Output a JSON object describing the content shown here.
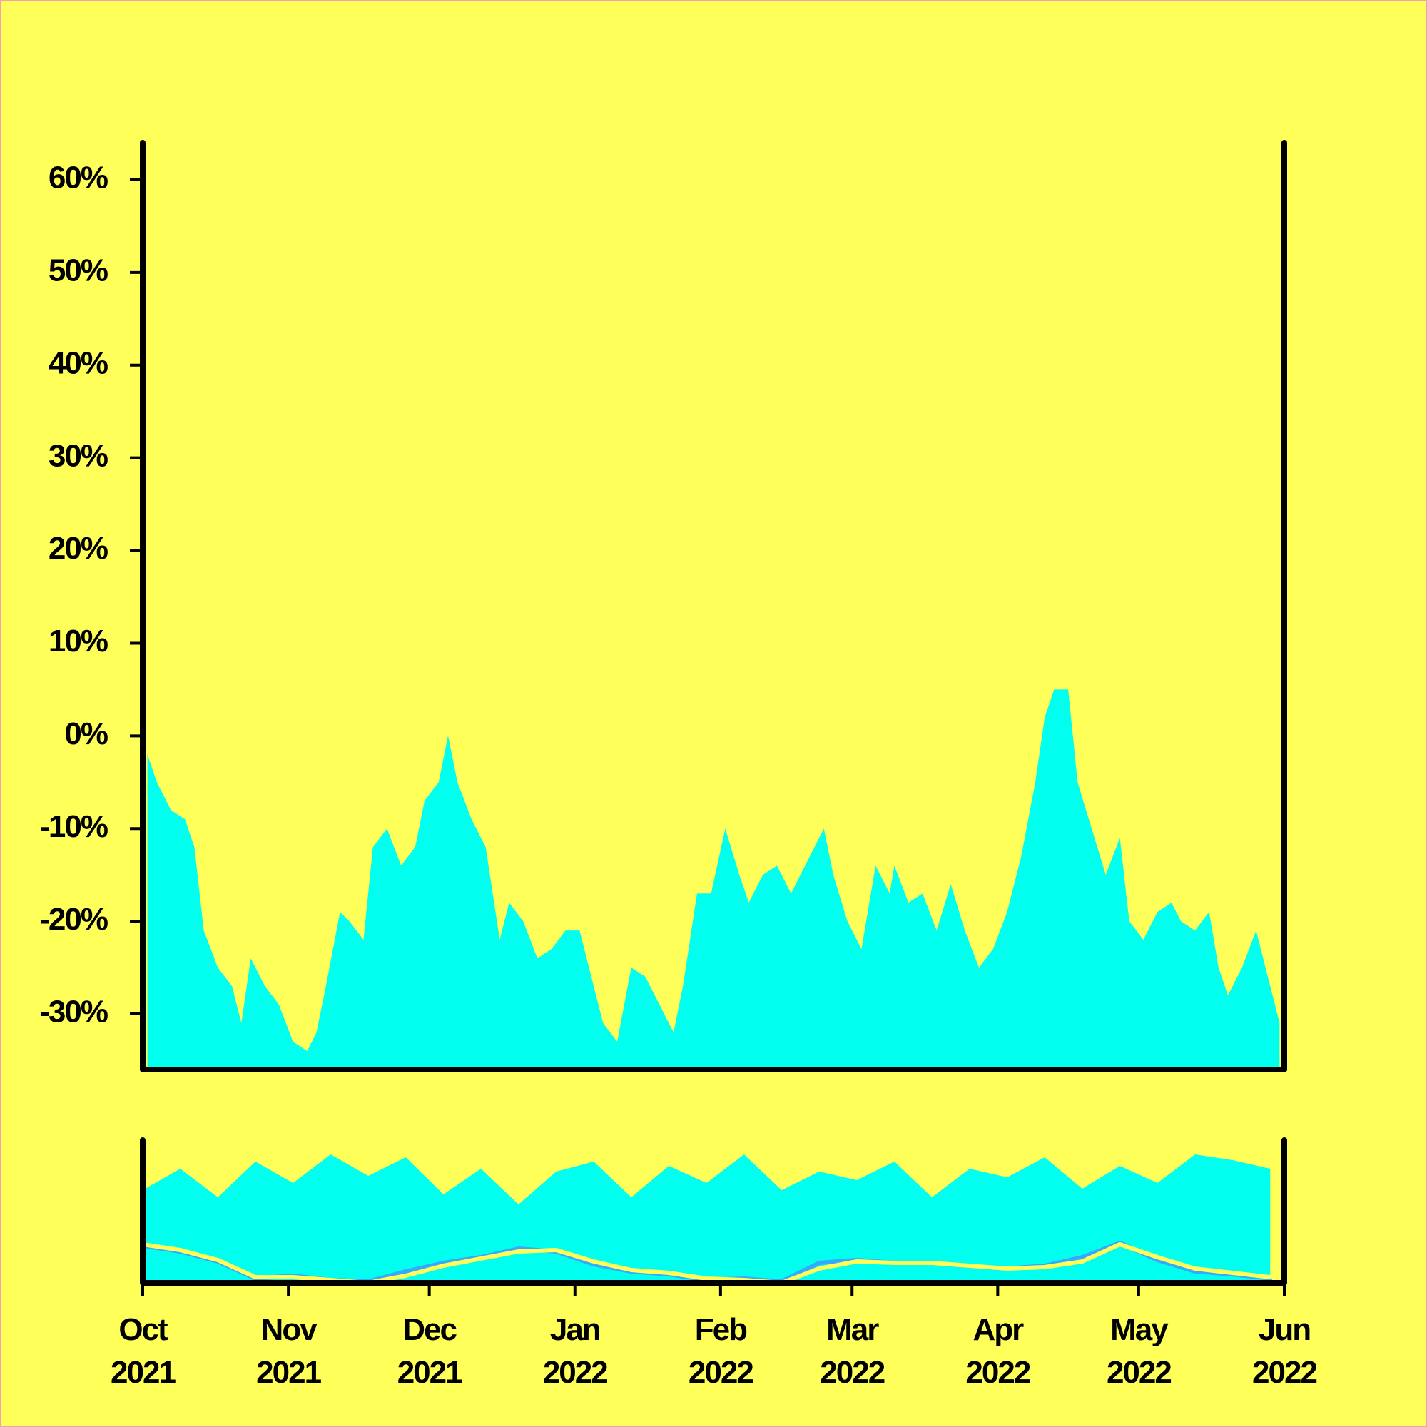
{
  "chart_data": [
    {
      "type": "area",
      "color": "#00ffee",
      "x": [
        1,
        3,
        6,
        9,
        11,
        13,
        16,
        19,
        21,
        23,
        26,
        29,
        32,
        35,
        37,
        39,
        42,
        44,
        47,
        49,
        52,
        55,
        58,
        60,
        63,
        65,
        67,
        70,
        73,
        76,
        78,
        81,
        84,
        87,
        90,
        93,
        96,
        98,
        101,
        104,
        107,
        110,
        113,
        115,
        118,
        121,
        124,
        127,
        129,
        132,
        135,
        138,
        141,
        145,
        147,
        150,
        153,
        156,
        159,
        160,
        163,
        166,
        169,
        172,
        175,
        178,
        181,
        184,
        187,
        190,
        192,
        194,
        197,
        199,
        202,
        205,
        208,
        210,
        213,
        216,
        219,
        221,
        224,
        227,
        229,
        231,
        234,
        237,
        239,
        242
      ],
      "values": [
        -2,
        -5,
        -8,
        -9,
        -12,
        -21,
        -25,
        -27,
        -31,
        -24,
        -27,
        -29,
        -33,
        -34,
        -32,
        -27,
        -19,
        -20,
        -22,
        -12,
        -10,
        -14,
        -12,
        -7,
        -5,
        0,
        -5,
        -9,
        -12,
        -22,
        -18,
        -20,
        -24,
        -23,
        -21,
        -21,
        -27,
        -31,
        -33,
        -25,
        -26,
        -29,
        -32,
        -27,
        -17,
        -17,
        -10,
        -15,
        -18,
        -15,
        -14,
        -17,
        -14,
        -10,
        -15,
        -20,
        -23,
        -14,
        -17,
        -14,
        -18,
        -17,
        -21,
        -16,
        -21,
        -25,
        -23,
        -19,
        -13,
        -5,
        2,
        5,
        5,
        -5,
        -10,
        -15,
        -11,
        -20,
        -22,
        -19,
        -18,
        -20,
        -21,
        -19,
        -25,
        -28,
        -25,
        -21,
        -25,
        -31
      ],
      "xlim": [
        0,
        243
      ],
      "ylim": [
        -36,
        64
      ],
      "yticks": [
        {
          "value": -30,
          "label": "-30%"
        },
        {
          "value": -20,
          "label": "-20%"
        },
        {
          "value": -10,
          "label": "-10%"
        },
        {
          "value": 0,
          "label": "0%"
        },
        {
          "value": 10,
          "label": "10%"
        },
        {
          "value": 20,
          "label": "20%"
        },
        {
          "value": 30,
          "label": "30%"
        },
        {
          "value": 40,
          "label": "40%"
        },
        {
          "value": 50,
          "label": "50%"
        },
        {
          "value": 60,
          "label": "60%"
        }
      ]
    },
    {
      "type": "area",
      "x": [
        0,
        8,
        16,
        24,
        32,
        40,
        48,
        56,
        64,
        72,
        80,
        88,
        96,
        104,
        112,
        120,
        128,
        136,
        144,
        152,
        160,
        168,
        176,
        184,
        192,
        200,
        208,
        216,
        224,
        232,
        240
      ],
      "series": [
        {
          "type": "area",
          "color": "#00ffee",
          "values": [
            65,
            80,
            60,
            85,
            70,
            90,
            75,
            88,
            62,
            80,
            55,
            78,
            85,
            60,
            82,
            70,
            90,
            65,
            78,
            72,
            85,
            60,
            80,
            74,
            88,
            66,
            82,
            70,
            90,
            86,
            80
          ]
        },
        {
          "type": "line",
          "color": "#33aaff",
          "values": [
            26,
            22,
            15,
            3,
            5,
            2,
            1,
            8,
            14,
            18,
            24,
            22,
            13,
            8,
            6,
            2,
            3,
            1,
            14,
            16,
            14,
            14,
            12,
            10,
            12,
            18,
            28,
            16,
            8,
            6,
            3
          ]
        },
        {
          "type": "line",
          "color": "#ffff5a",
          "values": [
            27,
            23,
            16,
            4,
            4,
            2,
            0,
            5,
            12,
            17,
            22,
            23,
            15,
            9,
            7,
            3,
            2,
            0,
            10,
            15,
            14,
            14,
            12,
            10,
            11,
            15,
            27,
            18,
            10,
            7,
            4
          ]
        }
      ],
      "xlim": [
        0,
        243
      ],
      "ylim": [
        0,
        100
      ],
      "xticks": [
        {
          "value": 0,
          "label": [
            "Oct",
            "2021"
          ]
        },
        {
          "value": 31,
          "label": [
            "Nov",
            "2021"
          ]
        },
        {
          "value": 61,
          "label": [
            "Dec",
            "2021"
          ]
        },
        {
          "value": 92,
          "label": [
            "Jan",
            "2022"
          ]
        },
        {
          "value": 123,
          "label": [
            "Feb",
            "2022"
          ]
        },
        {
          "value": 151,
          "label": [
            "Mar",
            "2022"
          ]
        },
        {
          "value": 182,
          "label": [
            "Apr",
            "2022"
          ]
        },
        {
          "value": 212,
          "label": [
            "May",
            "2022"
          ]
        },
        {
          "value": 243,
          "label": [
            "Jun",
            "2022"
          ]
        }
      ]
    }
  ]
}
